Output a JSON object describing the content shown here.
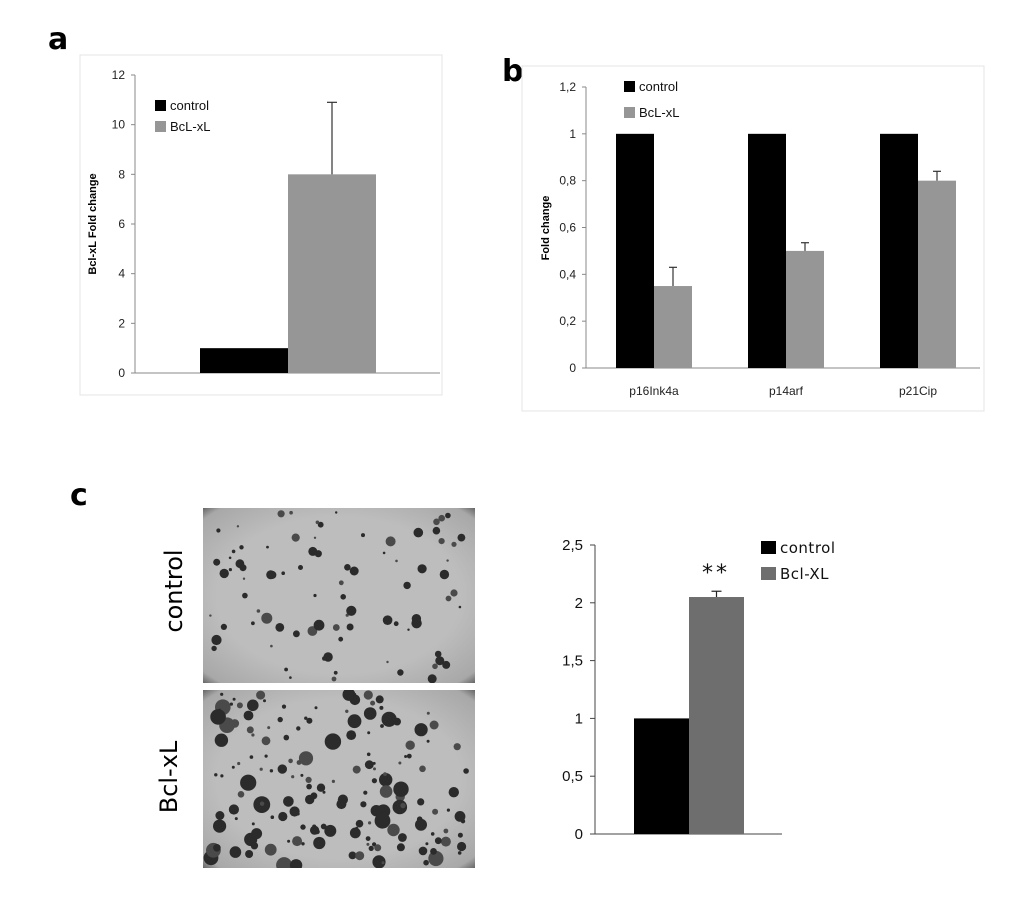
{
  "panel_labels": {
    "a": "a",
    "b": "b",
    "c": "c"
  },
  "colors": {
    "control": "#000000",
    "bclxl": "#969696",
    "bclxl_c": "#6e6e6e",
    "axis": "#888888"
  },
  "chart_data": [
    {
      "id": "a",
      "type": "bar",
      "ylabel": "Bcl-xL Fold change",
      "ylim": [
        0,
        12
      ],
      "yticks": [
        "0",
        "2",
        "4",
        "6",
        "8",
        "10",
        "12"
      ],
      "series": [
        {
          "name": "control",
          "values": [
            1.0
          ],
          "error": [
            0
          ]
        },
        {
          "name": "BcL-xL",
          "values": [
            8.0
          ],
          "error": [
            2.9
          ]
        }
      ],
      "legend": [
        "control",
        "BcL-xL"
      ]
    },
    {
      "id": "b",
      "type": "bar",
      "ylabel": "Fold change",
      "ylim": [
        0,
        1.2
      ],
      "yticks": [
        "0",
        "0,2",
        "0,4",
        "0,6",
        "0,8",
        "1",
        "1,2"
      ],
      "categories": [
        "p16Ink4a",
        "p14arf",
        "p21Cip"
      ],
      "series": [
        {
          "name": "control",
          "values": [
            1.0,
            1.0,
            1.0
          ],
          "error": [
            0,
            0,
            0
          ]
        },
        {
          "name": "BcL-xL",
          "values": [
            0.35,
            0.5,
            0.8
          ],
          "error": [
            0.08,
            0.035,
            0.04
          ]
        }
      ],
      "legend": [
        "control",
        "BcL-xL"
      ]
    },
    {
      "id": "c",
      "type": "bar",
      "ylabel": "",
      "ylim": [
        0,
        2.5
      ],
      "yticks": [
        "0",
        "0,5",
        "1",
        "1,5",
        "2",
        "2,5"
      ],
      "series": [
        {
          "name": "control",
          "values": [
            1.0
          ],
          "error": [
            0
          ]
        },
        {
          "name": "Bcl-XL",
          "values": [
            2.05
          ],
          "error": [
            0.05
          ]
        }
      ],
      "legend": [
        "control",
        "Bcl-XL"
      ],
      "annotation": "**"
    }
  ],
  "images": {
    "control_label": "control",
    "bclxl_label": "Bcl-xL"
  }
}
